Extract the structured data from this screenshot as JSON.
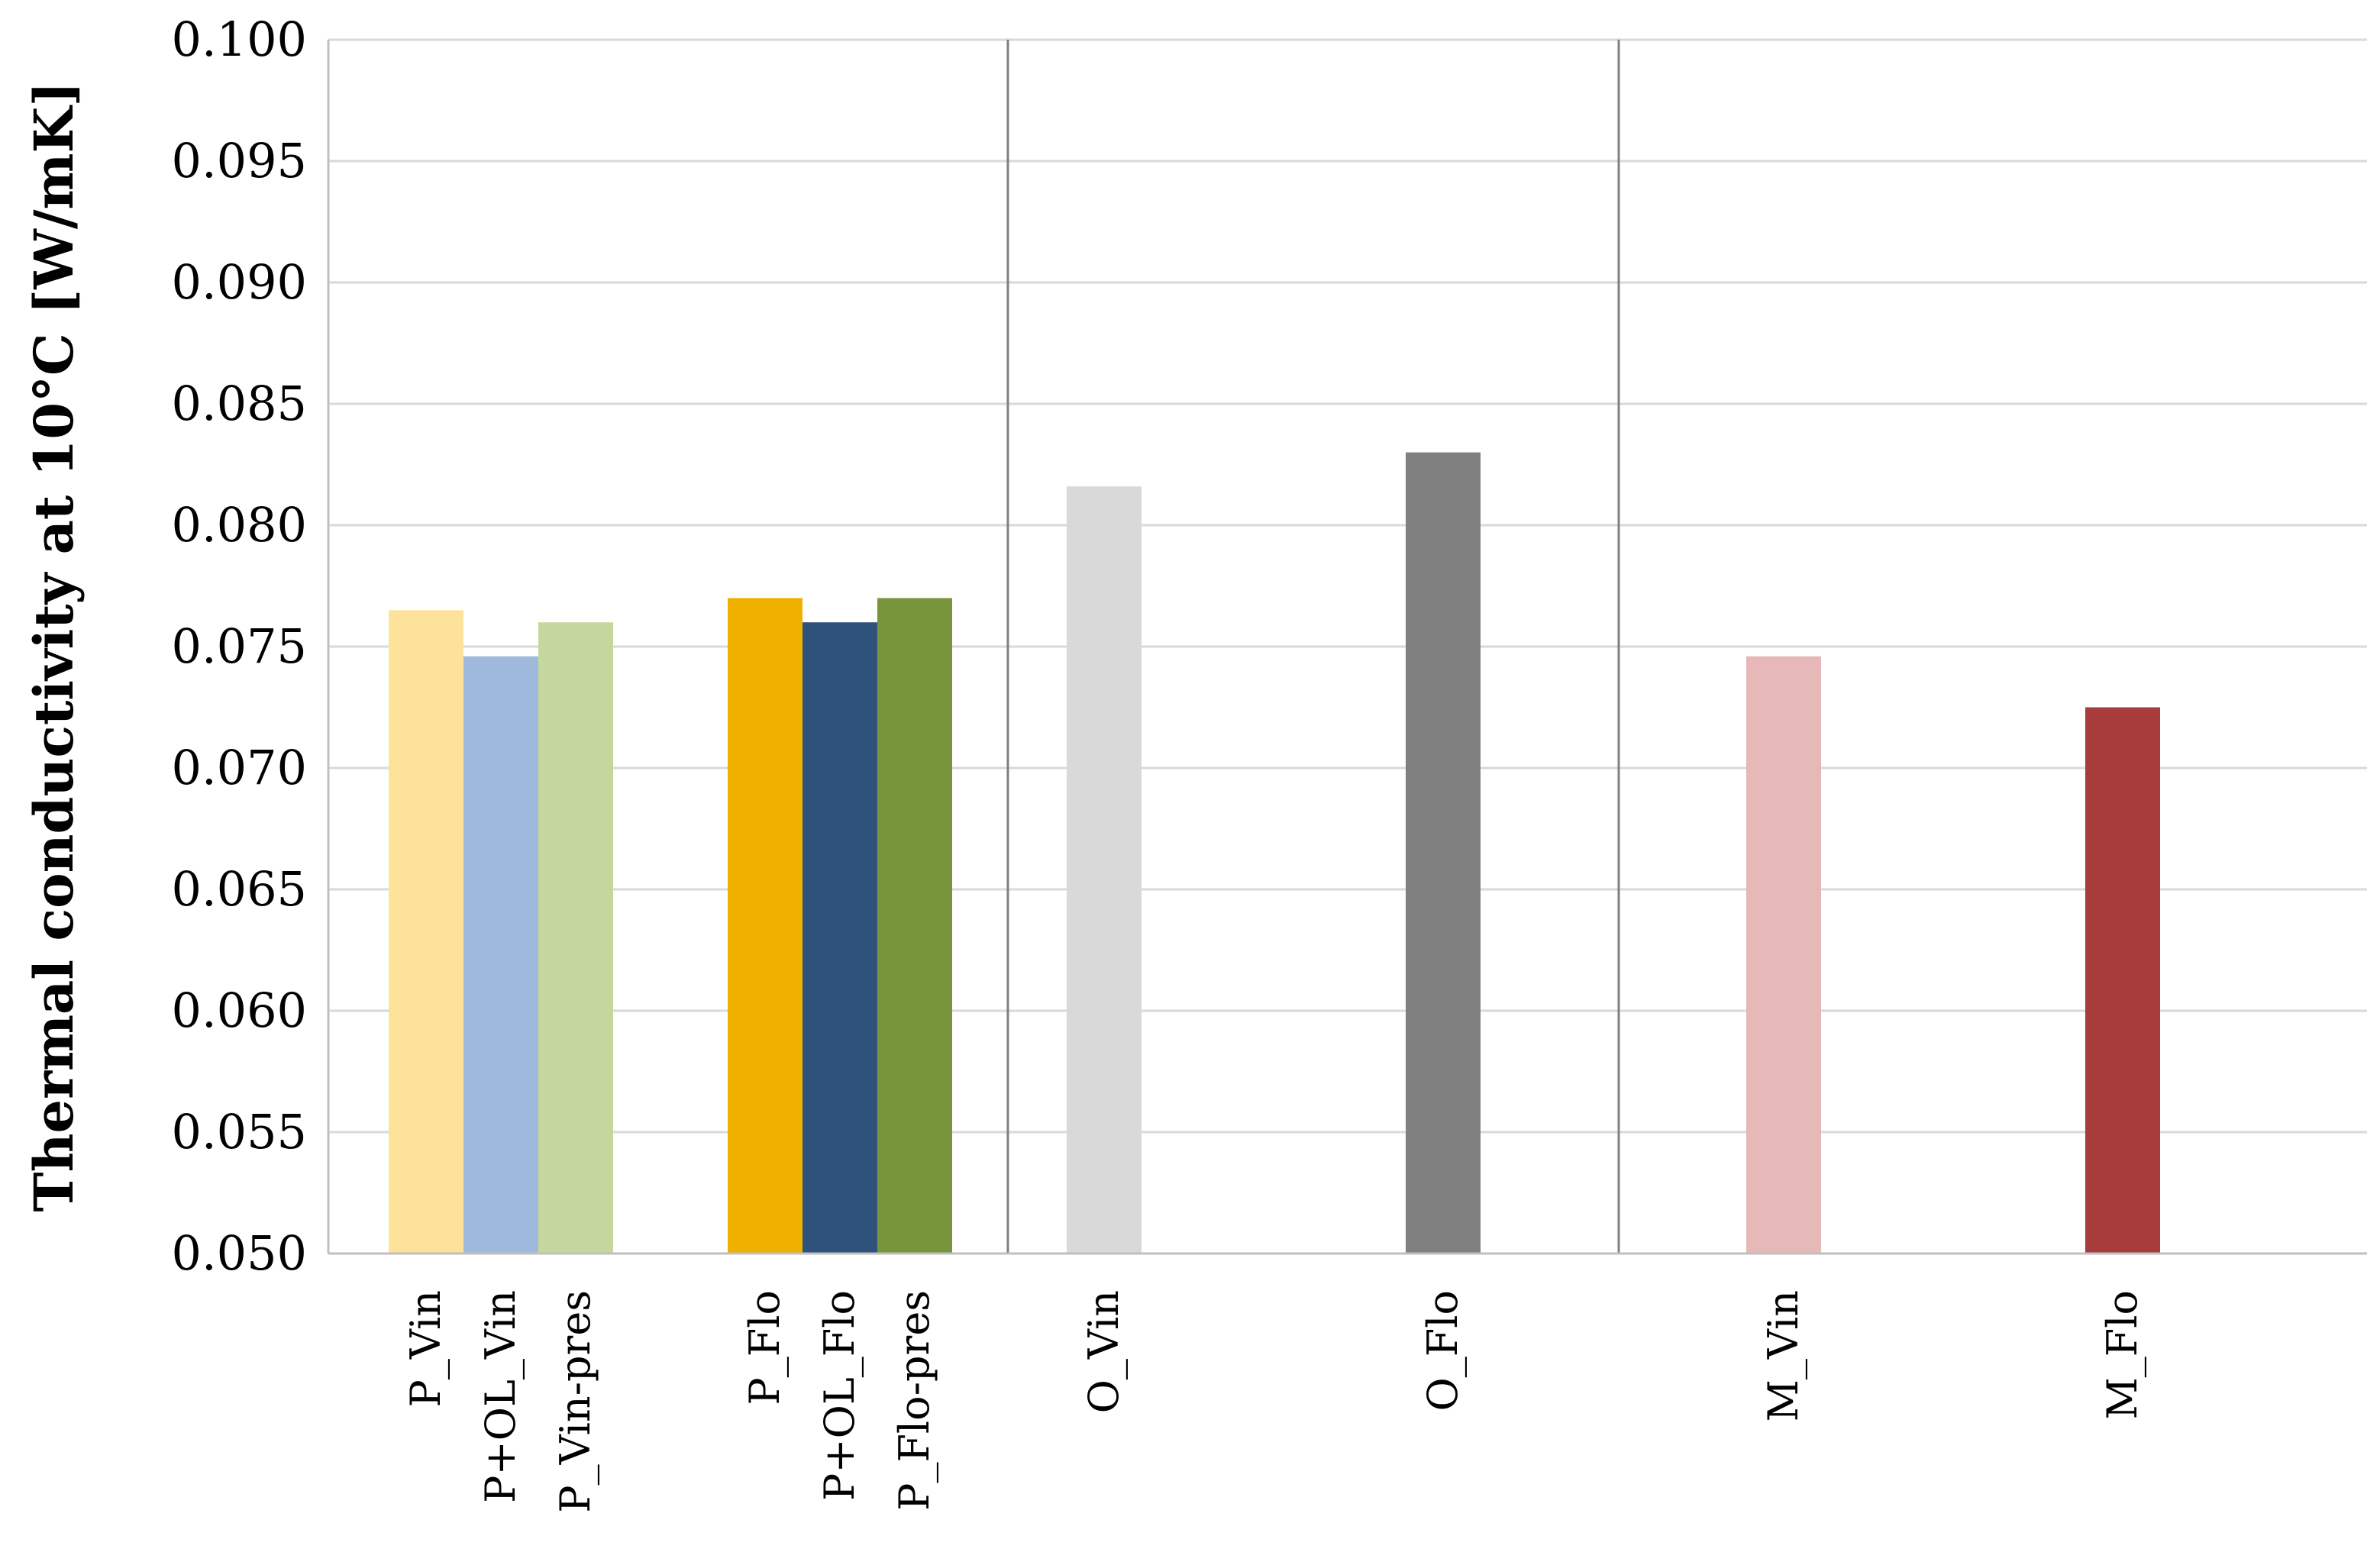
{
  "chart_data": {
    "type": "bar",
    "ylabel": "Thermal conductivity at 10°C [W/mK]",
    "xlabel": "",
    "ylim": [
      0.05,
      0.1
    ],
    "yticks": [
      "0.050",
      "0.055",
      "0.060",
      "0.065",
      "0.070",
      "0.075",
      "0.080",
      "0.085",
      "0.090",
      "0.095",
      "0.100"
    ],
    "grid": true,
    "categories": [
      "P_Vin",
      "P+OL_Vin",
      "P_Vin-pres",
      "P_Flo",
      "P+OL_Flo",
      "P_Flo-pres",
      "O_Vin",
      "O_Flo",
      "M_Vin",
      "M_Flo"
    ],
    "values": [
      0.0765,
      0.0746,
      0.076,
      0.077,
      0.076,
      0.077,
      0.0816,
      0.083,
      0.0746,
      0.0725
    ],
    "colors": [
      "#fde39a",
      "#9fb9dd",
      "#c4d89e",
      "#f0b000",
      "#2f527c",
      "#78953c",
      "#d9d9d9",
      "#808080",
      "#e6b8b7",
      "#a83c3c"
    ]
  }
}
